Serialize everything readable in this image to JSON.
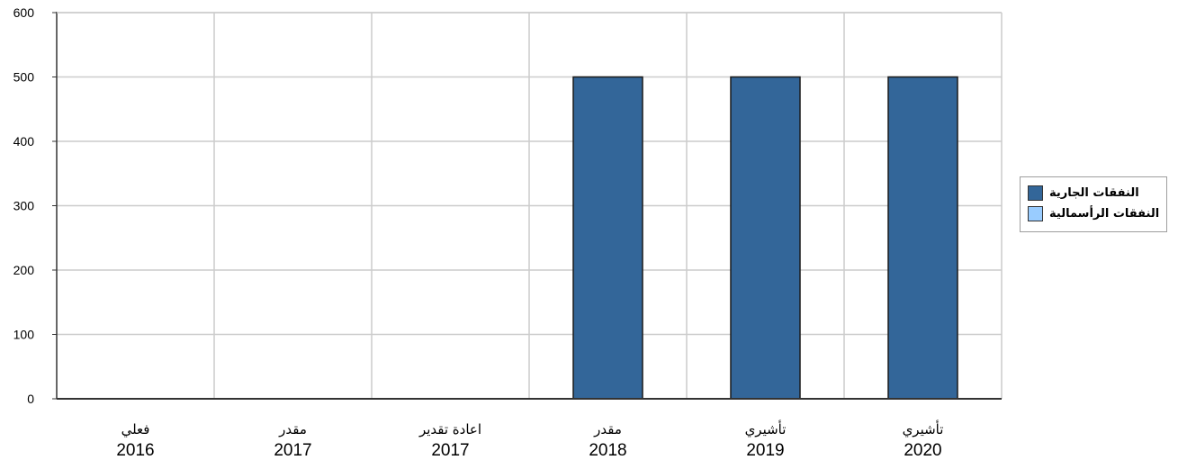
{
  "chart_data": {
    "type": "bar",
    "categories": [
      {
        "label": "فعلي",
        "year": "2016"
      },
      {
        "label": "مقدر",
        "year": "2017"
      },
      {
        "label": "اعادة تقدير",
        "year": "2017"
      },
      {
        "label": "مقدر",
        "year": "2018"
      },
      {
        "label": "تأشيري",
        "year": "2019"
      },
      {
        "label": "تأشيري",
        "year": "2020"
      }
    ],
    "series": [
      {
        "name": "النفقات الجارية",
        "color": "#336699",
        "values": [
          0,
          0,
          0,
          500,
          500,
          500
        ]
      },
      {
        "name": "النفقات الرأسمالية",
        "color": "#99ccff",
        "values": [
          0,
          0,
          0,
          0,
          0,
          0
        ]
      }
    ],
    "y_ticks": [
      "0",
      "100",
      "200",
      "300",
      "400",
      "500",
      "600"
    ],
    "ylim": [
      0,
      600
    ],
    "grid": true,
    "legend_position": "right",
    "title": "",
    "xlabel": "",
    "ylabel": ""
  }
}
